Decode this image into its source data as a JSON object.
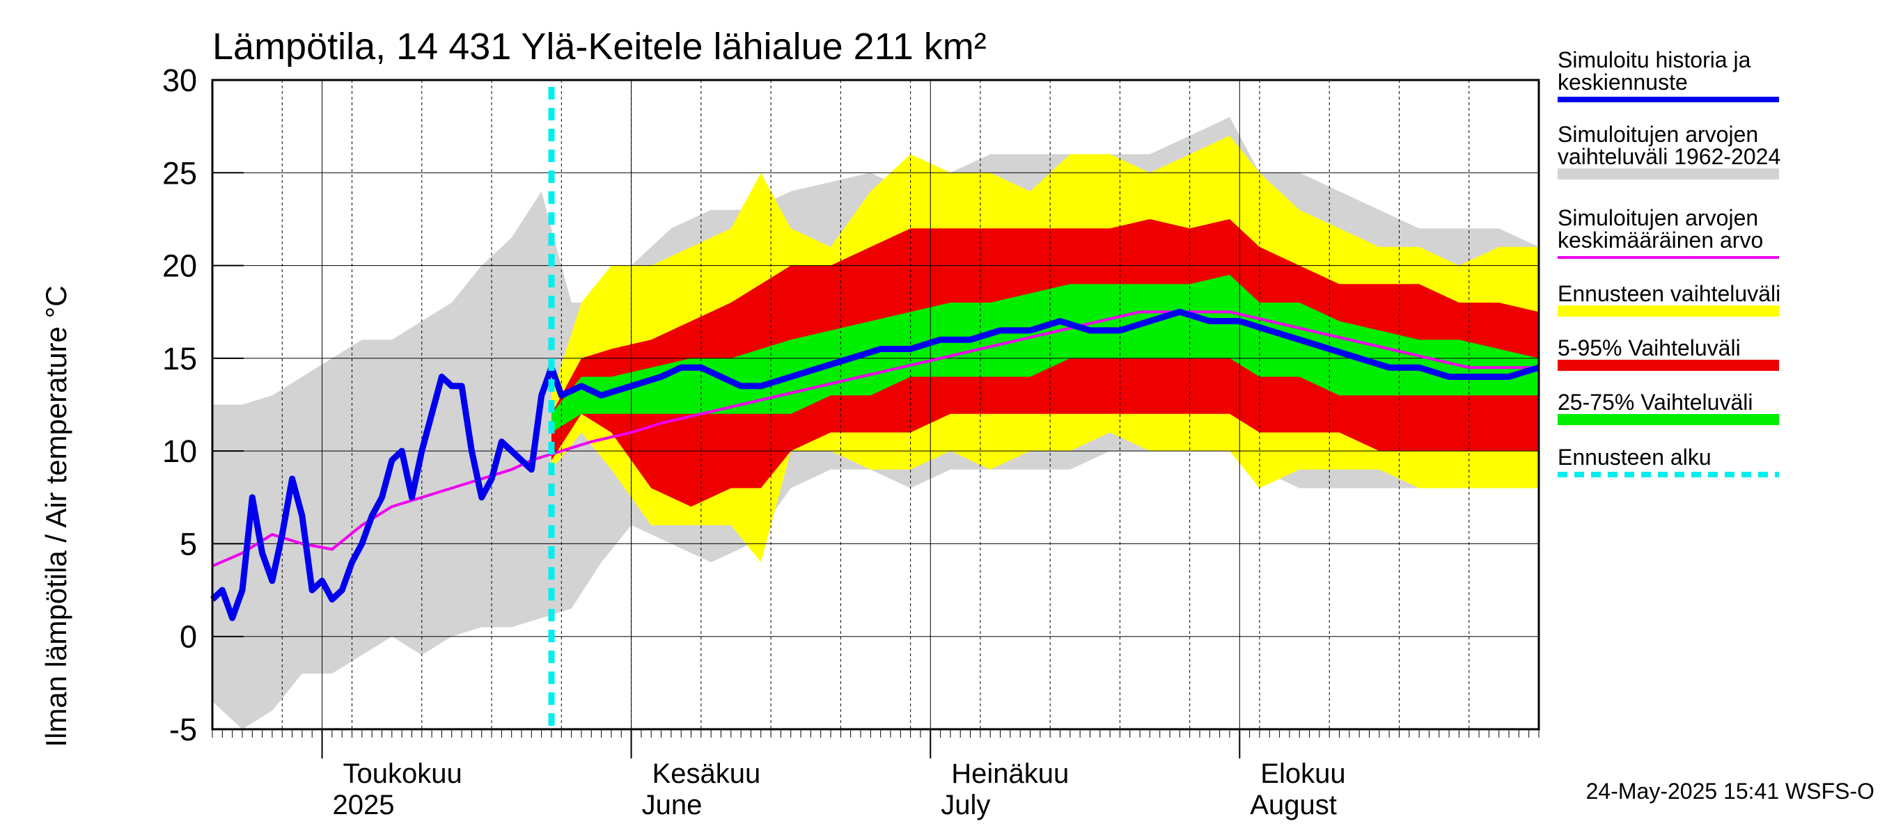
{
  "chart_data": {
    "type": "area",
    "title": "Lämpötila, 14 431 Ylä-Keitele lähialue 211 km²",
    "ylabel": "Ilman lämpötila / Air temperature   °C",
    "ylim": [
      -5,
      30
    ],
    "yticks": [
      "-5",
      "0",
      "5",
      "10",
      "15",
      "20",
      "25",
      "30"
    ],
    "x_range": [
      "2025-04-20",
      "2025-08-31"
    ],
    "grid": true,
    "legend_position": "right",
    "months": [
      {
        "fi": "Toukokuu",
        "en": "2025",
        "date": "2025-05-01"
      },
      {
        "fi": "Kesäkuu",
        "en": "June",
        "date": "2025-06-01"
      },
      {
        "fi": "Heinäkuu",
        "en": "July",
        "date": "2025-07-01"
      },
      {
        "fi": "Elokuu",
        "en": "August",
        "date": "2025-08-01"
      }
    ],
    "forecast_start": "2025-05-24",
    "legend": [
      {
        "label": "Simuloitu historia ja keskiennuste",
        "color": "#0000ee",
        "style": "line"
      },
      {
        "label": "Simuloitujen arvojen vaihteluväli 1962-2024",
        "color": "#d3d3d3",
        "style": "band"
      },
      {
        "label": "Simuloitujen arvojen keskimääräinen arvo",
        "color": "#ee00ee",
        "style": "line"
      },
      {
        "label": "Ennusteen vaihteluväli",
        "color": "#ffff00",
        "style": "band"
      },
      {
        "label": "5-95% Vaihteluväli",
        "color": "#ee0000",
        "style": "band"
      },
      {
        "label": "25-75% Vaihteluväli",
        "color": "#00ee00",
        "style": "band"
      },
      {
        "label": "Ennusteen alku",
        "color": "#00eeee",
        "style": "dashed"
      }
    ],
    "series": [
      {
        "name": "Simuloitujen arvojen vaihteluväli 1962-2024",
        "points": [
          [
            "2025-04-20",
            -3.5,
            12.5
          ],
          [
            "2025-04-23",
            -5,
            12.5
          ],
          [
            "2025-04-26",
            -4,
            13
          ],
          [
            "2025-04-29",
            -2,
            14
          ],
          [
            "2025-05-02",
            -2,
            15
          ],
          [
            "2025-05-05",
            -1,
            16
          ],
          [
            "2025-05-08",
            0,
            16
          ],
          [
            "2025-05-11",
            -1,
            17
          ],
          [
            "2025-05-14",
            0,
            18
          ],
          [
            "2025-05-17",
            0.5,
            20
          ],
          [
            "2025-05-20",
            0.5,
            21.5
          ],
          [
            "2025-05-23",
            1,
            24
          ],
          [
            "2025-05-26",
            1.5,
            18
          ],
          [
            "2025-05-29",
            4,
            18
          ],
          [
            "2025-06-01",
            6,
            20
          ],
          [
            "2025-06-05",
            5,
            22
          ],
          [
            "2025-06-09",
            4,
            23
          ],
          [
            "2025-06-13",
            5,
            23
          ],
          [
            "2025-06-17",
            8,
            24
          ],
          [
            "2025-06-21",
            9,
            24.5
          ],
          [
            "2025-06-25",
            9,
            25
          ],
          [
            "2025-06-29",
            8,
            24
          ],
          [
            "2025-07-03",
            9,
            25
          ],
          [
            "2025-07-07",
            9,
            26
          ],
          [
            "2025-07-11",
            9,
            26
          ],
          [
            "2025-07-15",
            9,
            26
          ],
          [
            "2025-07-19",
            10,
            26
          ],
          [
            "2025-07-23",
            10,
            26
          ],
          [
            "2025-07-27",
            10,
            27
          ],
          [
            "2025-07-31",
            10,
            28
          ],
          [
            "2025-08-03",
            9,
            25
          ],
          [
            "2025-08-07",
            8,
            25
          ],
          [
            "2025-08-11",
            8,
            24
          ],
          [
            "2025-08-15",
            8,
            23
          ],
          [
            "2025-08-19",
            8,
            22
          ],
          [
            "2025-08-23",
            8,
            22
          ],
          [
            "2025-08-27",
            8,
            22
          ],
          [
            "2025-08-31",
            8,
            21
          ]
        ]
      },
      {
        "name": "Ennusteen vaihteluväli",
        "points": [
          [
            "2025-05-24",
            9,
            13
          ],
          [
            "2025-05-27",
            11,
            18
          ],
          [
            "2025-05-30",
            9,
            20
          ],
          [
            "2025-06-03",
            6,
            20
          ],
          [
            "2025-06-07",
            6,
            21
          ],
          [
            "2025-06-11",
            6,
            22
          ],
          [
            "2025-06-14",
            4,
            25
          ],
          [
            "2025-06-17",
            10,
            22
          ],
          [
            "2025-06-21",
            10,
            21
          ],
          [
            "2025-06-25",
            9,
            24
          ],
          [
            "2025-06-29",
            9,
            26
          ],
          [
            "2025-07-03",
            10,
            25
          ],
          [
            "2025-07-07",
            9,
            25
          ],
          [
            "2025-07-11",
            10,
            24
          ],
          [
            "2025-07-15",
            10,
            26
          ],
          [
            "2025-07-19",
            11,
            26
          ],
          [
            "2025-07-23",
            10,
            25
          ],
          [
            "2025-07-27",
            10,
            26
          ],
          [
            "2025-07-31",
            10,
            27
          ],
          [
            "2025-08-03",
            8,
            25
          ],
          [
            "2025-08-07",
            9,
            23
          ],
          [
            "2025-08-11",
            9,
            22
          ],
          [
            "2025-08-15",
            9,
            21
          ],
          [
            "2025-08-19",
            8,
            21
          ],
          [
            "2025-08-23",
            8,
            20
          ],
          [
            "2025-08-27",
            8,
            21
          ],
          [
            "2025-08-31",
            8,
            21
          ]
        ]
      },
      {
        "name": "5-95% Vaihteluväli",
        "points": [
          [
            "2025-05-24",
            9.5,
            12
          ],
          [
            "2025-05-27",
            12,
            15
          ],
          [
            "2025-05-30",
            11,
            15.5
          ],
          [
            "2025-06-03",
            8,
            16
          ],
          [
            "2025-06-07",
            7,
            17
          ],
          [
            "2025-06-11",
            8,
            18
          ],
          [
            "2025-06-14",
            8,
            19
          ],
          [
            "2025-06-17",
            10,
            20
          ],
          [
            "2025-06-21",
            11,
            20
          ],
          [
            "2025-06-25",
            11,
            21
          ],
          [
            "2025-06-29",
            11,
            22
          ],
          [
            "2025-07-03",
            12,
            22
          ],
          [
            "2025-07-07",
            12,
            22
          ],
          [
            "2025-07-11",
            12,
            22
          ],
          [
            "2025-07-15",
            12,
            22
          ],
          [
            "2025-07-19",
            12,
            22
          ],
          [
            "2025-07-23",
            12,
            22.5
          ],
          [
            "2025-07-27",
            12,
            22
          ],
          [
            "2025-07-31",
            12,
            22.5
          ],
          [
            "2025-08-03",
            11,
            21
          ],
          [
            "2025-08-07",
            11,
            20
          ],
          [
            "2025-08-11",
            11,
            19
          ],
          [
            "2025-08-15",
            10,
            19
          ],
          [
            "2025-08-19",
            10,
            19
          ],
          [
            "2025-08-23",
            10,
            18
          ],
          [
            "2025-08-27",
            10,
            18
          ],
          [
            "2025-08-31",
            10,
            17.5
          ]
        ]
      },
      {
        "name": "25-75% Vaihteluväli",
        "points": [
          [
            "2025-05-24",
            11,
            12
          ],
          [
            "2025-05-27",
            12,
            14
          ],
          [
            "2025-05-30",
            12,
            14
          ],
          [
            "2025-06-03",
            12,
            14.5
          ],
          [
            "2025-06-07",
            12,
            15
          ],
          [
            "2025-06-11",
            12,
            15
          ],
          [
            "2025-06-14",
            12,
            15.5
          ],
          [
            "2025-06-17",
            12,
            16
          ],
          [
            "2025-06-21",
            13,
            16.5
          ],
          [
            "2025-06-25",
            13,
            17
          ],
          [
            "2025-06-29",
            14,
            17.5
          ],
          [
            "2025-07-03",
            14,
            18
          ],
          [
            "2025-07-07",
            14,
            18
          ],
          [
            "2025-07-11",
            14,
            18.5
          ],
          [
            "2025-07-15",
            15,
            19
          ],
          [
            "2025-07-19",
            15,
            19
          ],
          [
            "2025-07-23",
            15,
            19
          ],
          [
            "2025-07-27",
            15,
            19
          ],
          [
            "2025-07-31",
            15,
            19.5
          ],
          [
            "2025-08-03",
            14,
            18
          ],
          [
            "2025-08-07",
            14,
            18
          ],
          [
            "2025-08-11",
            13,
            17
          ],
          [
            "2025-08-15",
            13,
            16.5
          ],
          [
            "2025-08-19",
            13,
            16
          ],
          [
            "2025-08-23",
            13,
            16
          ],
          [
            "2025-08-27",
            13,
            15.5
          ],
          [
            "2025-08-31",
            13,
            15
          ]
        ]
      },
      {
        "name": "Simuloitujen arvojen keskimääräinen arvo",
        "points": [
          [
            "2025-04-20",
            3.8
          ],
          [
            "2025-04-23",
            4.5
          ],
          [
            "2025-04-26",
            5.5
          ],
          [
            "2025-04-29",
            5
          ],
          [
            "2025-05-02",
            4.7
          ],
          [
            "2025-05-05",
            6
          ],
          [
            "2025-05-08",
            7
          ],
          [
            "2025-05-11",
            7.5
          ],
          [
            "2025-05-14",
            8
          ],
          [
            "2025-05-17",
            8.5
          ],
          [
            "2025-05-20",
            9
          ],
          [
            "2025-05-22",
            9.5
          ],
          [
            "2025-05-25",
            10
          ],
          [
            "2025-05-28",
            10.5
          ],
          [
            "2025-06-01",
            11
          ],
          [
            "2025-06-04",
            11.5
          ],
          [
            "2025-06-08",
            12
          ],
          [
            "2025-06-12",
            12.5
          ],
          [
            "2025-06-16",
            13
          ],
          [
            "2025-06-20",
            13.5
          ],
          [
            "2025-06-24",
            14
          ],
          [
            "2025-06-28",
            14.5
          ],
          [
            "2025-07-02",
            15
          ],
          [
            "2025-07-06",
            15.5
          ],
          [
            "2025-07-10",
            16
          ],
          [
            "2025-07-14",
            16.5
          ],
          [
            "2025-07-18",
            17
          ],
          [
            "2025-07-22",
            17.5
          ],
          [
            "2025-07-26",
            17.5
          ],
          [
            "2025-07-31",
            17.5
          ],
          [
            "2025-08-04",
            17
          ],
          [
            "2025-08-08",
            16.5
          ],
          [
            "2025-08-12",
            16
          ],
          [
            "2025-08-16",
            15.5
          ],
          [
            "2025-08-20",
            15
          ],
          [
            "2025-08-24",
            14.5
          ],
          [
            "2025-08-28",
            14.5
          ],
          [
            "2025-08-31",
            14.5
          ]
        ]
      },
      {
        "name": "Simuloitu historia ja keskiennuste",
        "points": [
          [
            "2025-04-20",
            2
          ],
          [
            "2025-04-21",
            2.5
          ],
          [
            "2025-04-22",
            1
          ],
          [
            "2025-04-23",
            2.5
          ],
          [
            "2025-04-24",
            7.5
          ],
          [
            "2025-04-25",
            4.5
          ],
          [
            "2025-04-26",
            3
          ],
          [
            "2025-04-27",
            5.5
          ],
          [
            "2025-04-28",
            8.5
          ],
          [
            "2025-04-29",
            6.5
          ],
          [
            "2025-04-30",
            2.5
          ],
          [
            "2025-05-01",
            3
          ],
          [
            "2025-05-02",
            2
          ],
          [
            "2025-05-03",
            2.5
          ],
          [
            "2025-05-04",
            4
          ],
          [
            "2025-05-05",
            5
          ],
          [
            "2025-05-06",
            6.5
          ],
          [
            "2025-05-07",
            7.5
          ],
          [
            "2025-05-08",
            9.5
          ],
          [
            "2025-05-09",
            10
          ],
          [
            "2025-05-10",
            7.5
          ],
          [
            "2025-05-11",
            10
          ],
          [
            "2025-05-12",
            12
          ],
          [
            "2025-05-13",
            14
          ],
          [
            "2025-05-14",
            13.5
          ],
          [
            "2025-05-15",
            13.5
          ],
          [
            "2025-05-16",
            10
          ],
          [
            "2025-05-17",
            7.5
          ],
          [
            "2025-05-18",
            8.5
          ],
          [
            "2025-05-19",
            10.5
          ],
          [
            "2025-05-20",
            10
          ],
          [
            "2025-05-21",
            9.5
          ],
          [
            "2025-05-22",
            9
          ],
          [
            "2025-05-23",
            13
          ],
          [
            "2025-05-24",
            14.5
          ],
          [
            "2025-05-25",
            13
          ],
          [
            "2025-05-27",
            13.5
          ],
          [
            "2025-05-29",
            13
          ],
          [
            "2025-06-01",
            13.5
          ],
          [
            "2025-06-04",
            14
          ],
          [
            "2025-06-06",
            14.5
          ],
          [
            "2025-06-08",
            14.5
          ],
          [
            "2025-06-10",
            14
          ],
          [
            "2025-06-12",
            13.5
          ],
          [
            "2025-06-14",
            13.5
          ],
          [
            "2025-06-17",
            14
          ],
          [
            "2025-06-20",
            14.5
          ],
          [
            "2025-06-23",
            15
          ],
          [
            "2025-06-26",
            15.5
          ],
          [
            "2025-06-29",
            15.5
          ],
          [
            "2025-07-02",
            16
          ],
          [
            "2025-07-05",
            16
          ],
          [
            "2025-07-08",
            16.5
          ],
          [
            "2025-07-11",
            16.5
          ],
          [
            "2025-07-14",
            17
          ],
          [
            "2025-07-17",
            16.5
          ],
          [
            "2025-07-20",
            16.5
          ],
          [
            "2025-07-23",
            17
          ],
          [
            "2025-07-26",
            17.5
          ],
          [
            "2025-07-29",
            17
          ],
          [
            "2025-08-01",
            17
          ],
          [
            "2025-08-04",
            16.5
          ],
          [
            "2025-08-07",
            16
          ],
          [
            "2025-08-10",
            15.5
          ],
          [
            "2025-08-13",
            15
          ],
          [
            "2025-08-16",
            14.5
          ],
          [
            "2025-08-19",
            14.5
          ],
          [
            "2025-08-22",
            14
          ],
          [
            "2025-08-25",
            14
          ],
          [
            "2025-08-28",
            14
          ],
          [
            "2025-08-31",
            14.5
          ]
        ]
      }
    ]
  },
  "footer": {
    "timestamp": "24-May-2025 15:41 WSFS-O"
  }
}
